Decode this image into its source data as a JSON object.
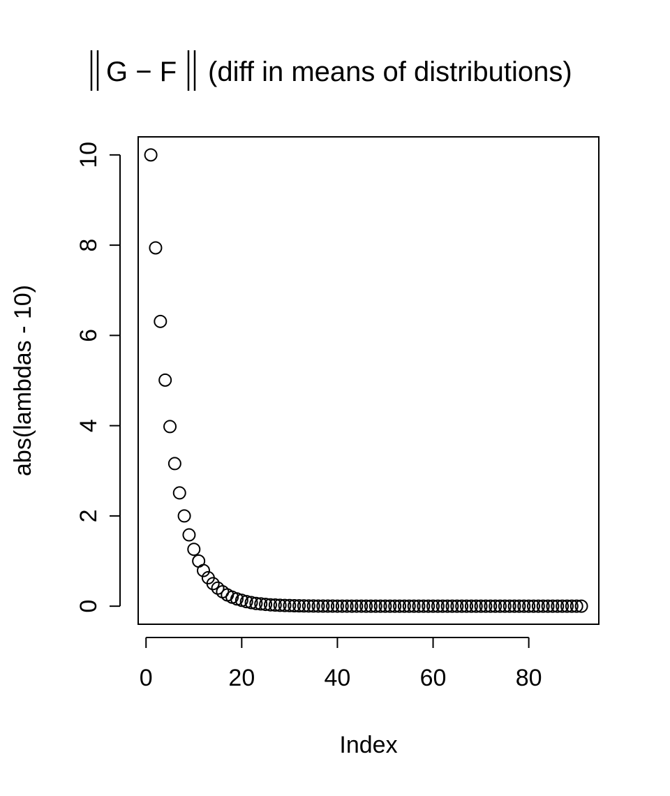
{
  "chart_data": {
    "type": "scatter",
    "title": {
      "norm_symbol": "G − F",
      "rest": "(diff in means of distributions)"
    },
    "xlabel": "Index",
    "ylabel": "abs(lambdas - 10)",
    "xlim": [
      -1.64,
      94.64
    ],
    "ylim": [
      -0.4,
      10.4
    ],
    "x_ticks": [
      0,
      20,
      40,
      60,
      80
    ],
    "y_ticks": [
      0,
      2,
      4,
      6,
      8,
      10
    ],
    "x_tick_labels": [
      "0",
      "20",
      "40",
      "60",
      "80"
    ],
    "y_tick_labels": [
      "0",
      "2",
      "4",
      "6",
      "8",
      "10"
    ],
    "grid": false,
    "legend": "none",
    "marker": "open-circle",
    "series": [
      {
        "x": [
          1,
          2,
          3,
          4,
          5,
          6,
          7,
          8,
          9,
          10,
          11,
          12,
          13,
          14,
          15,
          16,
          17,
          18,
          19,
          20,
          21,
          22,
          23,
          24,
          25,
          26,
          27,
          28,
          29,
          30,
          31,
          32,
          33,
          34,
          35,
          36,
          37,
          38,
          39,
          40,
          41,
          42,
          43,
          44,
          45,
          46,
          47,
          48,
          49,
          50,
          51,
          52,
          53,
          54,
          55,
          56,
          57,
          58,
          59,
          60,
          61,
          62,
          63,
          64,
          65,
          66,
          67,
          68,
          69,
          70,
          71,
          72,
          73,
          74,
          75,
          76,
          77,
          78,
          79,
          80,
          81,
          82,
          83,
          84,
          85,
          86,
          87,
          88,
          89,
          90,
          91
        ],
        "y": [
          10,
          7.94,
          6.31,
          5.01,
          3.98,
          3.16,
          2.51,
          2.0,
          1.58,
          1.26,
          1.0,
          0.79,
          0.63,
          0.5,
          0.4,
          0.32,
          0.25,
          0.2,
          0.16,
          0.13,
          0.1,
          0.08,
          0.06,
          0.05,
          0.04,
          0.03,
          0.025,
          0.02,
          0.016,
          0.013,
          0.01,
          0.008,
          0.006,
          0.005,
          0.004,
          0.003,
          0.0025,
          0.002,
          0.0016,
          0.0013,
          0.001,
          0.001,
          0.001,
          0.001,
          0.001,
          0,
          0,
          0,
          0,
          0,
          0,
          0,
          0,
          0,
          0,
          0,
          0,
          0,
          0,
          0,
          0,
          0,
          0,
          0,
          0,
          0,
          0,
          0,
          0,
          0,
          0,
          0,
          0,
          0,
          0,
          0,
          0,
          0,
          0,
          0,
          0,
          0,
          0,
          0,
          0,
          0,
          0,
          0,
          0,
          0,
          0
        ]
      }
    ]
  }
}
